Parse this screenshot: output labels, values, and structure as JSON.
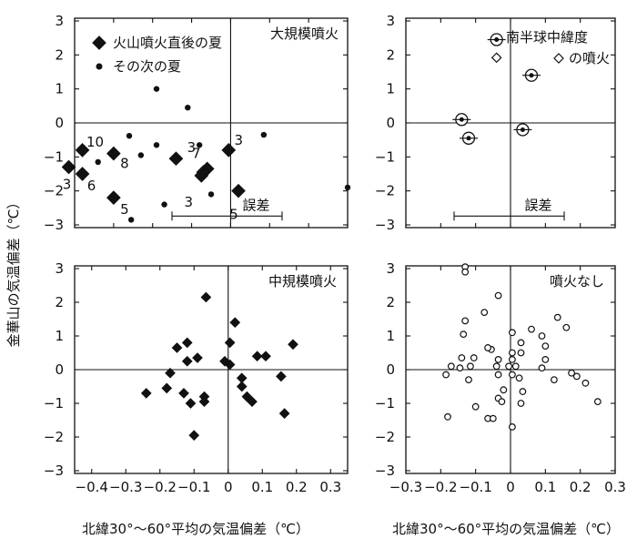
{
  "figure": {
    "ylabel": "金華山の気温偏差（℃）",
    "xlabel": "北緯30°～60°平均の気温偏差（℃）",
    "xlabel_right": "北緯30°～60°平均の気温偏差（℃）"
  },
  "chart_data": [
    {
      "type": "scatter",
      "title": "大規模噴火",
      "legend": [
        {
          "label": "火山噴火直後の夏",
          "marker": "diamond"
        },
        {
          "label": "その次の夏",
          "marker": "dot"
        }
      ],
      "xlim": [
        -0.4,
        0.3
      ],
      "ylim": [
        -3,
        3
      ],
      "yticks": [
        "3",
        "2",
        "1",
        "0",
        "−1",
        "−2",
        "−3"
      ],
      "xticks": [],
      "series": [
        {
          "marker": "diamond",
          "points": [
            {
              "x": -0.415,
              "y": -1.3,
              "label": "3"
            },
            {
              "x": -0.38,
              "y": -0.8,
              "label": "10"
            },
            {
              "x": -0.38,
              "y": -1.5,
              "label": "6"
            },
            {
              "x": -0.3,
              "y": -0.9,
              "label": "8"
            },
            {
              "x": -0.3,
              "y": -2.2,
              "label": "5"
            },
            {
              "x": -0.14,
              "y": -1.05,
              "label": "3"
            },
            {
              "x": -0.06,
              "y": -1.35,
              "label": "7"
            },
            {
              "x": -0.07,
              "y": -1.45,
              "label": ""
            },
            {
              "x": -0.075,
              "y": -1.55,
              "label": "3"
            },
            {
              "x": -0.005,
              "y": -0.8,
              "label": "3"
            },
            {
              "x": 0.02,
              "y": -2.0,
              "label": "5"
            }
          ]
        },
        {
          "marker": "dot",
          "points": [
            {
              "x": -0.19,
              "y": 1.0
            },
            {
              "x": -0.11,
              "y": 0.45
            },
            {
              "x": -0.34,
              "y": -1.15
            },
            {
              "x": -0.26,
              "y": -0.38
            },
            {
              "x": -0.23,
              "y": -0.95
            },
            {
              "x": -0.19,
              "y": -0.65
            },
            {
              "x": -0.17,
              "y": -2.4
            },
            {
              "x": -0.08,
              "y": -0.65
            },
            {
              "x": -0.05,
              "y": -2.1
            },
            {
              "x": 0.085,
              "y": -0.35
            },
            {
              "x": 0.3,
              "y": -1.9
            },
            {
              "x": -0.255,
              "y": -2.85
            }
          ]
        }
      ],
      "annotations": [
        {
          "text": "誤差",
          "type": "error-bar",
          "range": [
            -0.17,
            0.17
          ],
          "y": -2.82
        }
      ]
    },
    {
      "type": "scatter",
      "title": "南半球中緯度の噴火",
      "legend": [
        {
          "label": "南半球中緯度",
          "marker": "open-diamond"
        },
        {
          "label": "の噴火",
          "marker": "open-diamond"
        }
      ],
      "xlim": [
        -0.3,
        0.3
      ],
      "ylim": [
        -3,
        3
      ],
      "yticks": [
        "3",
        "2",
        "1",
        "0",
        "−1",
        "−2",
        "−3"
      ],
      "xticks": [],
      "series": [
        {
          "marker": "circled-diamond",
          "points": [
            {
              "x": -0.14,
              "y": 0.1
            },
            {
              "x": -0.12,
              "y": -0.45
            },
            {
              "x": -0.04,
              "y": 2.45
            },
            {
              "x": 0.035,
              "y": -0.2
            },
            {
              "x": 0.06,
              "y": 1.4
            }
          ]
        }
      ],
      "extra_markers": [
        {
          "x": -0.04,
          "y": 1.92,
          "marker": "open-diamond"
        }
      ],
      "annotations": [
        {
          "text": "誤差",
          "type": "error-bar",
          "range": [
            -0.17,
            0.17
          ],
          "y": -2.82
        }
      ]
    },
    {
      "type": "scatter",
      "title": "中規模噴火",
      "xlim": [
        -0.45,
        0.35
      ],
      "ylim": [
        -3,
        3
      ],
      "yticks": [
        "3",
        "2",
        "1",
        "0",
        "−1",
        "−2",
        "−3"
      ],
      "xticks": [
        "−0.4",
        "−0.3",
        "−0.2",
        "−0.1",
        "0",
        "0.1",
        "0.2",
        "0.3"
      ],
      "xtick_values": [
        -0.4,
        -0.3,
        -0.2,
        -0.1,
        0,
        0.1,
        0.2,
        0.3
      ],
      "series": [
        {
          "marker": "diamond",
          "points": [
            {
              "x": -0.065,
              "y": 2.15
            },
            {
              "x": 0.02,
              "y": 1.4
            },
            {
              "x": -0.12,
              "y": 0.8
            },
            {
              "x": -0.15,
              "y": 0.65
            },
            {
              "x": 0.005,
              "y": 0.8
            },
            {
              "x": 0.085,
              "y": 0.4
            },
            {
              "x": 0.11,
              "y": 0.4
            },
            {
              "x": 0.19,
              "y": 0.75
            },
            {
              "x": -0.12,
              "y": 0.25
            },
            {
              "x": -0.09,
              "y": 0.35
            },
            {
              "x": -0.01,
              "y": 0.25
            },
            {
              "x": 0.005,
              "y": 0.15
            },
            {
              "x": -0.17,
              "y": -0.1
            },
            {
              "x": 0.04,
              "y": -0.25
            },
            {
              "x": 0.155,
              "y": -0.2
            },
            {
              "x": -0.24,
              "y": -0.7
            },
            {
              "x": -0.18,
              "y": -0.55
            },
            {
              "x": -0.13,
              "y": -0.7
            },
            {
              "x": -0.11,
              "y": -1.0
            },
            {
              "x": -0.07,
              "y": -0.8
            },
            {
              "x": -0.07,
              "y": -0.95
            },
            {
              "x": 0.04,
              "y": -0.5
            },
            {
              "x": 0.055,
              "y": -0.8
            },
            {
              "x": 0.07,
              "y": -0.95
            },
            {
              "x": 0.165,
              "y": -1.3
            },
            {
              "x": -0.1,
              "y": -1.95
            }
          ]
        }
      ]
    },
    {
      "type": "scatter",
      "title": "噴火なし",
      "xlim": [
        -0.3,
        0.3
      ],
      "ylim": [
        -3,
        3
      ],
      "yticks": [
        "3",
        "2",
        "1",
        "0",
        "−1",
        "−2",
        "−3"
      ],
      "xticks": [
        "−0.3",
        "−0.2",
        "−0.1",
        "0",
        "0.1",
        "0.2",
        "0.3"
      ],
      "xtick_values": [
        -0.3,
        -0.2,
        -0.1,
        0,
        0.1,
        0.2,
        0.3
      ],
      "series": [
        {
          "marker": "open-circle",
          "points": [
            {
              "x": -0.13,
              "y": 3.05
            },
            {
              "x": -0.13,
              "y": 2.9
            },
            {
              "x": -0.035,
              "y": 2.2
            },
            {
              "x": 0.135,
              "y": 1.55
            },
            {
              "x": -0.13,
              "y": 1.45
            },
            {
              "x": -0.075,
              "y": 1.7
            },
            {
              "x": 0.06,
              "y": 1.2
            },
            {
              "x": 0.09,
              "y": 1.0
            },
            {
              "x": 0.16,
              "y": 1.25
            },
            {
              "x": -0.135,
              "y": 1.05
            },
            {
              "x": 0.005,
              "y": 1.1
            },
            {
              "x": 0.03,
              "y": 0.8
            },
            {
              "x": 0.1,
              "y": 0.7
            },
            {
              "x": -0.055,
              "y": 0.6
            },
            {
              "x": -0.065,
              "y": 0.65
            },
            {
              "x": 0.005,
              "y": 0.5
            },
            {
              "x": 0.03,
              "y": 0.5
            },
            {
              "x": -0.14,
              "y": 0.35
            },
            {
              "x": -0.105,
              "y": 0.35
            },
            {
              "x": -0.035,
              "y": 0.3
            },
            {
              "x": 0.005,
              "y": 0.3
            },
            {
              "x": 0.1,
              "y": 0.3
            },
            {
              "x": -0.17,
              "y": 0.1
            },
            {
              "x": -0.145,
              "y": 0.05
            },
            {
              "x": -0.115,
              "y": 0.1
            },
            {
              "x": -0.04,
              "y": 0.1
            },
            {
              "x": -0.005,
              "y": 0.1
            },
            {
              "x": 0.015,
              "y": 0.1
            },
            {
              "x": 0.09,
              "y": 0.05
            },
            {
              "x": -0.185,
              "y": -0.15
            },
            {
              "x": -0.12,
              "y": -0.3
            },
            {
              "x": -0.035,
              "y": -0.15
            },
            {
              "x": 0.005,
              "y": -0.15
            },
            {
              "x": 0.025,
              "y": -0.25
            },
            {
              "x": 0.125,
              "y": -0.3
            },
            {
              "x": 0.175,
              "y": -0.1
            },
            {
              "x": 0.19,
              "y": -0.2
            },
            {
              "x": 0.215,
              "y": -0.4
            },
            {
              "x": -0.02,
              "y": -0.6
            },
            {
              "x": -0.035,
              "y": -0.85
            },
            {
              "x": -0.025,
              "y": -0.95
            },
            {
              "x": 0.035,
              "y": -0.65
            },
            {
              "x": -0.1,
              "y": -1.1
            },
            {
              "x": 0.03,
              "y": -1.0
            },
            {
              "x": 0.25,
              "y": -0.95
            },
            {
              "x": -0.18,
              "y": -1.4
            },
            {
              "x": -0.065,
              "y": -1.45
            },
            {
              "x": -0.05,
              "y": -1.45
            },
            {
              "x": 0.005,
              "y": -1.7
            }
          ]
        }
      ]
    }
  ]
}
